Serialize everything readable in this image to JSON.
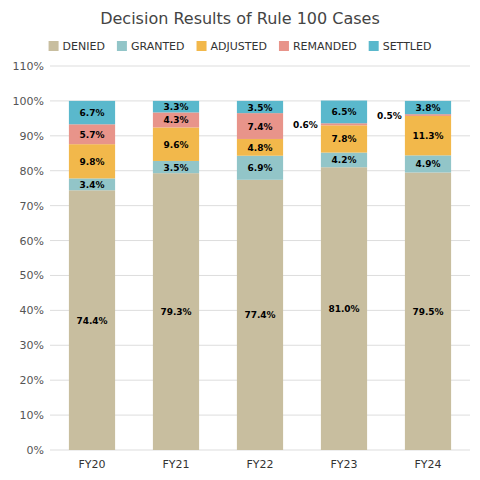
{
  "chart_data": {
    "type": "bar",
    "stacked": true,
    "title": "Decision Results of Rule 100 Cases",
    "categories": [
      "FY20",
      "FY21",
      "FY22",
      "FY23",
      "FY24"
    ],
    "series": [
      {
        "name": "DENIED",
        "color": "#c8be9f",
        "values": [
          74.4,
          79.3,
          77.4,
          81.0,
          79.5
        ],
        "value_labels": [
          "74.4%",
          "79.3%",
          "77.4%",
          "81.0%",
          "79.5%"
        ]
      },
      {
        "name": "GRANTED",
        "color": "#92c5c8",
        "values": [
          3.4,
          3.5,
          6.9,
          4.2,
          4.9
        ],
        "value_labels": [
          "3.4%",
          "3.5%",
          "6.9%",
          "4.2%",
          "4.9%"
        ]
      },
      {
        "name": "ADJUSTED",
        "color": "#f2b84b",
        "values": [
          9.8,
          9.6,
          4.8,
          7.8,
          11.3
        ],
        "value_labels": [
          "9.8%",
          "9.6%",
          "4.8%",
          "7.8%",
          "11.3%"
        ]
      },
      {
        "name": "REMANDED",
        "color": "#e8948a",
        "values": [
          5.7,
          4.3,
          7.4,
          0.6,
          0.5
        ],
        "value_labels": [
          "5.7%",
          "4.3%",
          "7.4%",
          "0.6%",
          "0.5%"
        ]
      },
      {
        "name": "SETTLED",
        "color": "#5ab8cc",
        "values": [
          6.7,
          3.3,
          3.5,
          6.5,
          3.8
        ],
        "value_labels": [
          "6.7%",
          "3.3%",
          "3.5%",
          "6.5%",
          "3.8%"
        ]
      }
    ],
    "ylim": [
      0,
      110
    ],
    "yticks": [
      {
        "value": 0,
        "label": "0%"
      },
      {
        "value": 10,
        "label": "10%"
      },
      {
        "value": 20,
        "label": "20%"
      },
      {
        "value": 30,
        "label": "30%"
      },
      {
        "value": 40,
        "label": "40%"
      },
      {
        "value": 50,
        "label": "50%"
      },
      {
        "value": 60,
        "label": "60%"
      },
      {
        "value": 70,
        "label": "70%"
      },
      {
        "value": 80,
        "label": "80%"
      },
      {
        "value": 90,
        "label": "90%"
      },
      {
        "value": 100,
        "label": "100%"
      },
      {
        "value": 110,
        "label": "110%"
      }
    ],
    "grid": true,
    "legend": "top",
    "data_labels": true
  }
}
